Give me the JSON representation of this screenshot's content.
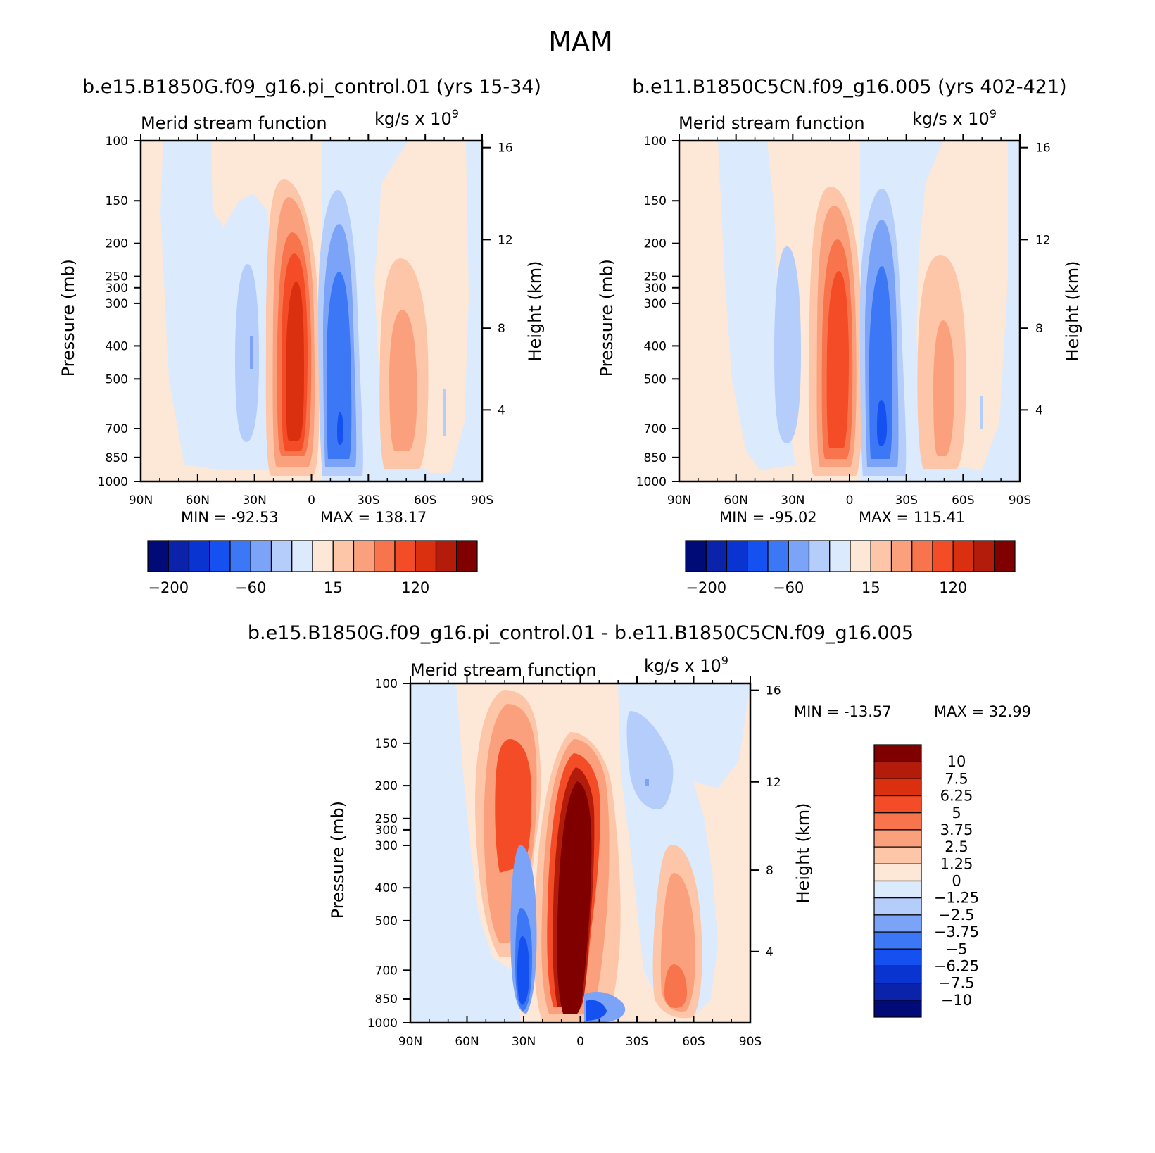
{
  "figure": {
    "title": "MAM"
  },
  "chart_data": [
    {
      "type": "heatmap",
      "title": "b.e15.B1850G.f09_g16.pi_control.01 (yrs 15-34)",
      "subtitle_left": "Merid stream function",
      "subtitle_right": "kg/s x 10",
      "subtitle_exp": "9",
      "xlabel": "",
      "ylabel": "Pressure (mb)",
      "y2label": "Height (km)",
      "x_ticks": [
        "90N",
        "60N",
        "30N",
        "0",
        "30S",
        "60S",
        "90S"
      ],
      "y_ticks": [
        "100",
        "150",
        "200",
        "250",
        "300",
        "300",
        "400",
        "500",
        "700",
        "850",
        "1000"
      ],
      "y2_ticks": [
        "16",
        "12",
        "8",
        "4"
      ],
      "min_text": "MIN = -92.53",
      "max_text": "MAX = 138.17",
      "min": -92.53,
      "max": 138.17,
      "colorbar_labels": [
        "-200",
        "-60",
        "15",
        "120"
      ],
      "levels": [
        -200,
        -160,
        -120,
        -90,
        -60,
        -40,
        -20,
        -10,
        0,
        15,
        40,
        60,
        90,
        120,
        160,
        200
      ],
      "cells": [
        {
          "lat": -85,
          "values": [
            -3,
            -3,
            -3,
            -3,
            -3,
            -3,
            -3,
            -2,
            -2,
            -2
          ]
        },
        {
          "lat": -40,
          "values": [
            -5,
            -12,
            -22,
            -30,
            -38,
            -42,
            -40,
            -36,
            -28,
            -10
          ]
        },
        {
          "lat": -10,
          "values": [
            20,
            60,
            95,
            125,
            135,
            138,
            132,
            120,
            90,
            40
          ]
        },
        {
          "lat": 15,
          "values": [
            -10,
            -35,
            -55,
            -70,
            -78,
            -82,
            -80,
            -92,
            -60,
            -25
          ]
        },
        {
          "lat": 45,
          "values": [
            5,
            10,
            20,
            28,
            34,
            36,
            36,
            32,
            24,
            10
          ]
        },
        {
          "lat": 80,
          "values": [
            -3,
            -3,
            -3,
            -4,
            -4,
            -4,
            -4,
            -4,
            -3,
            -2
          ]
        }
      ]
    },
    {
      "type": "heatmap",
      "title": "b.e11.B1850C5CN.f09_g16.005 (yrs 402-421)",
      "subtitle_left": "Merid stream function",
      "subtitle_right": "kg/s x 10",
      "subtitle_exp": "9",
      "xlabel": "",
      "ylabel": "Pressure (mb)",
      "y2label": "Height (km)",
      "x_ticks": [
        "90N",
        "60N",
        "30N",
        "0",
        "30S",
        "60S",
        "90S"
      ],
      "y_ticks": [
        "100",
        "150",
        "200",
        "250",
        "300",
        "300",
        "400",
        "500",
        "700",
        "850",
        "1000"
      ],
      "y2_ticks": [
        "16",
        "12",
        "8",
        "4"
      ],
      "min_text": "MIN = -95.02",
      "max_text": "MAX = 115.41",
      "min": -95.02,
      "max": 115.41,
      "colorbar_labels": [
        "-200",
        "-60",
        "15",
        "120"
      ],
      "levels": [
        -200,
        -160,
        -120,
        -90,
        -60,
        -40,
        -20,
        -10,
        0,
        15,
        40,
        60,
        90,
        120,
        160,
        200
      ],
      "cells": [
        {
          "lat": -85,
          "values": [
            2,
            2,
            2,
            2,
            2,
            2,
            2,
            2,
            2,
            2
          ]
        },
        {
          "lat": -40,
          "values": [
            -4,
            -10,
            -18,
            -24,
            -30,
            -33,
            -33,
            -30,
            -22,
            -8
          ]
        },
        {
          "lat": -10,
          "values": [
            18,
            50,
            80,
            105,
            112,
            115,
            112,
            100,
            80,
            35
          ]
        },
        {
          "lat": 15,
          "values": [
            -10,
            -35,
            -55,
            -70,
            -80,
            -85,
            -88,
            -95,
            -70,
            -28
          ]
        },
        {
          "lat": 45,
          "values": [
            4,
            10,
            18,
            26,
            30,
            32,
            32,
            28,
            20,
            8
          ]
        },
        {
          "lat": 80,
          "values": [
            -3,
            -3,
            -3,
            -3,
            -3,
            -3,
            -3,
            -3,
            -2,
            -2
          ]
        }
      ]
    },
    {
      "type": "heatmap",
      "title": "b.e15.B1850G.f09_g16.pi_control.01 - b.e11.B1850C5CN.f09_g16.005",
      "subtitle_left": "Merid stream function",
      "subtitle_right": "kg/s x 10",
      "subtitle_exp": "9",
      "xlabel": "",
      "ylabel": "Pressure (mb)",
      "y2label": "Height (km)",
      "x_ticks": [
        "90N",
        "60N",
        "30N",
        "0",
        "30S",
        "60S",
        "90S"
      ],
      "y_ticks": [
        "100",
        "150",
        "200",
        "250",
        "300",
        "300",
        "400",
        "500",
        "700",
        "850",
        "1000"
      ],
      "y2_ticks": [
        "16",
        "12",
        "8",
        "4"
      ],
      "min_text": "MIN = -13.57",
      "max_text": "MAX =   32.99",
      "min": -13.57,
      "max": 32.99,
      "colorbar_labels": [
        "10",
        "7.5",
        "6.25",
        "5",
        "3.75",
        "2.5",
        "1.25",
        "0",
        "-1.25",
        "-2.5",
        "-3.75",
        "-5",
        "-6.25",
        "-7.5",
        "-10"
      ],
      "levels": [
        -10,
        -7.5,
        -6.25,
        -5,
        -3.75,
        -2.5,
        -1.25,
        0,
        1.25,
        2.5,
        3.75,
        5,
        6.25,
        7.5,
        10
      ],
      "cells": [
        {
          "lat": -80,
          "values": [
            -0.8,
            -0.8,
            -0.6,
            -0.6,
            -0.5,
            -0.5,
            -0.5,
            -0.6,
            -1.5,
            -0.3
          ]
        },
        {
          "lat": -45,
          "values": [
            1.5,
            3.5,
            5,
            5.5,
            4.5,
            3.5,
            3,
            3.5,
            3,
            1.5
          ]
        },
        {
          "lat": -30,
          "values": [
            1,
            3,
            3.5,
            3,
            2,
            0.5,
            -2,
            -5,
            -9,
            -4
          ]
        },
        {
          "lat": -5,
          "values": [
            2,
            6,
            12,
            20,
            28,
            32,
            33,
            30,
            20,
            3
          ]
        },
        {
          "lat": 10,
          "values": [
            1.5,
            3,
            4.5,
            5,
            3.5,
            2.5,
            2,
            1.5,
            -3,
            -13.57
          ]
        },
        {
          "lat": 25,
          "values": [
            0.5,
            1.5,
            2.5,
            3,
            3.5,
            3.5,
            2.5,
            1.5,
            0.5,
            -0.5
          ]
        },
        {
          "lat": 40,
          "values": [
            -0.5,
            -1.5,
            -2.5,
            -2.5,
            -1.5,
            -0.8,
            -0.5,
            -0.3,
            0.5,
            0.3
          ]
        },
        {
          "lat": 55,
          "values": [
            0.5,
            0.5,
            0.5,
            1,
            1.5,
            2.5,
            3.5,
            5,
            6,
            1.5
          ]
        }
      ]
    }
  ],
  "colors": {
    "scale16": [
      "#000b78",
      "#0a23aa",
      "#0a34d2",
      "#1550f0",
      "#3c78f5",
      "#7ba4f8",
      "#b5cdfb",
      "#dbeafd",
      "#fde7d6",
      "#fdc6a8",
      "#fba07c",
      "#f8744d",
      "#f44c26",
      "#db3010",
      "#b31c0a",
      "#800000"
    ]
  }
}
